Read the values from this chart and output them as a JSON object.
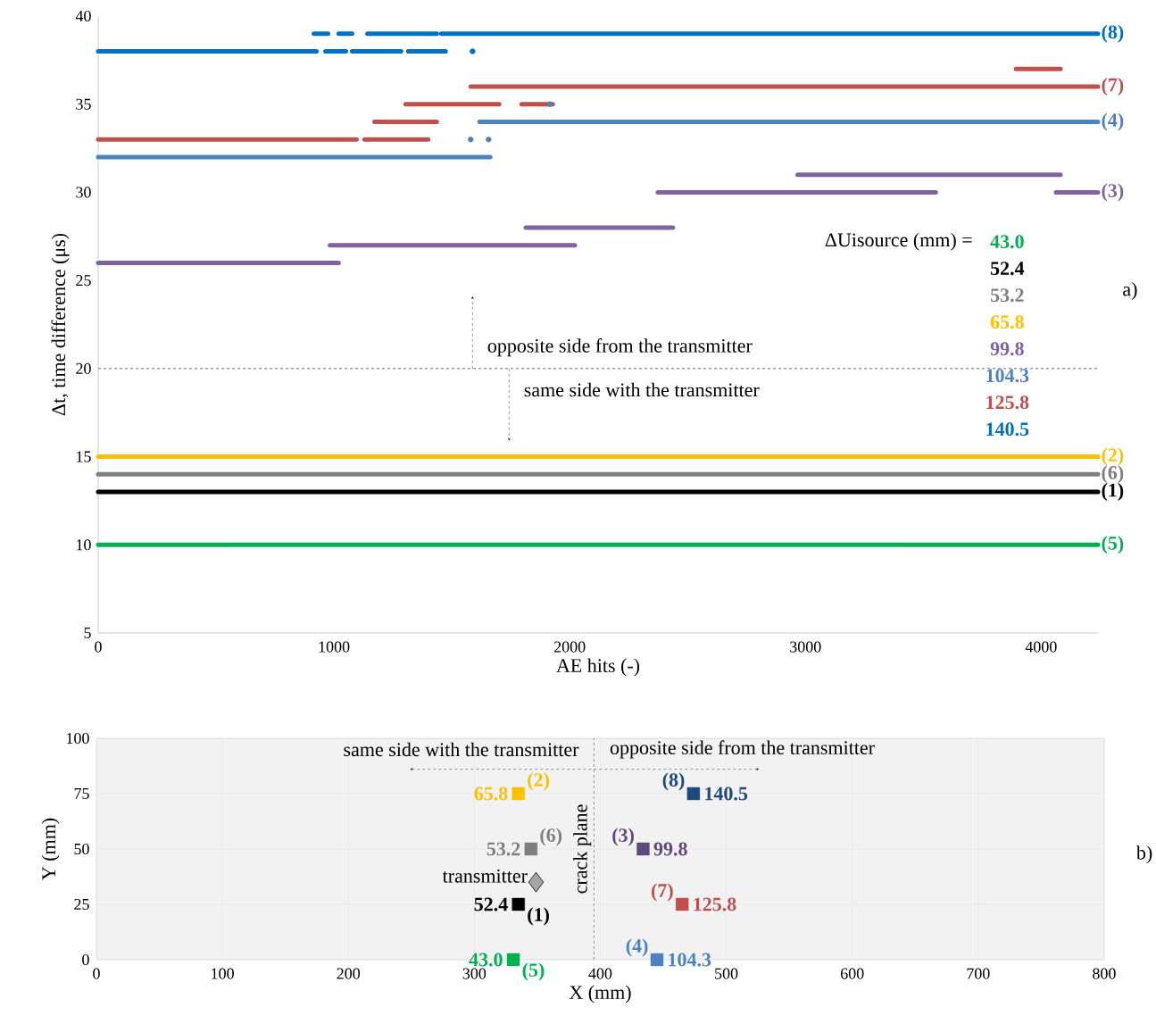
{
  "chart_data": [
    {
      "type": "line",
      "xlabel": "AE hits (-)",
      "ylabel": "Δt, time difference (μs)",
      "xlim": [
        0,
        4241
      ],
      "ylim": [
        5,
        40
      ],
      "xticks": [
        0,
        1000,
        2000,
        3000,
        4000
      ],
      "yticks": [
        5,
        10,
        15,
        20,
        25,
        30,
        35,
        40
      ],
      "ref_lines": [
        {
          "axis": "y",
          "value": 20,
          "line_style": "dashed"
        }
      ],
      "annotations": [
        "opposite side from the transmitter",
        "same side with the transmitter",
        "ΔUisource (mm) =",
        "43.0",
        "52.4",
        "53.2",
        "65.8",
        "99.8",
        "104.3",
        "125.8",
        "140.5",
        "a)"
      ],
      "series": [
        {
          "name": "(5)",
          "color": "#00b050",
          "x": [
            0,
            4241
          ],
          "values": [
            10,
            10
          ]
        },
        {
          "name": "(1)",
          "color": "#000000",
          "x": [
            0,
            4241
          ],
          "values": [
            13,
            13
          ]
        },
        {
          "name": "(6)",
          "color": "#7f7f7f",
          "x": [
            0,
            4241
          ],
          "values": [
            14,
            14
          ]
        },
        {
          "name": "(2)",
          "color": "#ffc000",
          "x": [
            0,
            4241
          ],
          "values": [
            15,
            15
          ]
        },
        {
          "name": "(3)",
          "color": "#8064a2",
          "x": [
            0,
            1020,
            null,
            983,
            2022,
            null,
            1814,
            2438,
            null,
            2967,
            4082,
            null,
            2374,
            3553,
            null,
            4063,
            4241
          ],
          "values": [
            26,
            26,
            null,
            27,
            27,
            null,
            28,
            28,
            null,
            31,
            31,
            null,
            30,
            30,
            null,
            30,
            30
          ]
        },
        {
          "name": "(4)",
          "color": "#4f81bd",
          "x": [
            0,
            1663,
            null,
            1618,
            4241
          ],
          "values": [
            32,
            32,
            null,
            34,
            34
          ]
        },
        {
          "type": "scatter",
          "marker": "circle",
          "color": "#4f81bd",
          "x": [
            1580,
            1656,
            1916
          ],
          "values": [
            33,
            33,
            35
          ]
        },
        {
          "name": "(7)",
          "color": "#c0504d",
          "x": [
            0,
            1096,
            null,
            1130,
            1400,
            null,
            1172,
            1436,
            null,
            1304,
            1701,
            null,
            1796,
            1928,
            null,
            3893,
            4082,
            null,
            1580,
            4241
          ],
          "values": [
            33,
            33,
            null,
            33,
            33,
            null,
            34,
            34,
            null,
            35,
            35,
            null,
            35,
            35,
            null,
            37,
            37,
            null,
            36,
            36
          ]
        },
        {
          "name": "(8)",
          "color": "#0070c0",
          "x": [
            0,
            926,
            null,
            964,
            1051,
            null,
            1077,
            1285,
            null,
            1315,
            1474,
            null,
            915,
            975,
            null,
            1020,
            1077,
            null,
            1142,
            1436,
            null,
            1455,
            4241
          ],
          "values": [
            38,
            38,
            null,
            38,
            38,
            null,
            38,
            38,
            null,
            38,
            38,
            null,
            39,
            39,
            null,
            39,
            39,
            null,
            39,
            39,
            null,
            39,
            39
          ]
        },
        {
          "type": "scatter",
          "marker": "circle",
          "color": "#0070c0",
          "x": [
            1588
          ],
          "values": [
            38
          ]
        }
      ]
    },
    {
      "type": "scatter",
      "xlabel": "X (mm)",
      "ylabel": "Y (mm)",
      "xlim": [
        0,
        800
      ],
      "ylim": [
        0,
        100
      ],
      "xticks": [
        0,
        100,
        200,
        300,
        400,
        500,
        600,
        700,
        800
      ],
      "yticks": [
        0,
        25,
        50,
        75,
        100
      ],
      "grid": true,
      "marker": "square",
      "ref_lines": [
        {
          "axis": "x",
          "value": 395,
          "label": "crack plane",
          "line_style": "dashed"
        }
      ],
      "annotations": [
        "same side with the transmitter",
        "opposite side from the transmitter",
        "b)",
        {
          "text": "65.8",
          "x": 335,
          "y": 75
        },
        {
          "text": "53.2",
          "x": 345,
          "y": 50
        },
        {
          "text": "52.4",
          "x": 335,
          "y": 25
        },
        {
          "text": "43.0",
          "x": 331,
          "y": 0
        },
        {
          "text": "140.5",
          "x": 474,
          "y": 75
        },
        {
          "text": "99.8",
          "x": 434,
          "y": 50
        },
        {
          "text": "125.8",
          "x": 465,
          "y": 25
        },
        {
          "text": "104.3",
          "x": 445,
          "y": 0
        }
      ],
      "series": [
        {
          "name": "(2)",
          "color": "#ffc000",
          "x": [
            335
          ],
          "values": [
            75
          ]
        },
        {
          "name": "(6)",
          "color": "#7f7f7f",
          "x": [
            345
          ],
          "values": [
            50
          ]
        },
        {
          "name": "(1)",
          "color": "#000000",
          "x": [
            335
          ],
          "values": [
            25
          ]
        },
        {
          "name": "(5)",
          "color": "#00b050",
          "x": [
            331
          ],
          "values": [
            0
          ]
        },
        {
          "name": "(8)",
          "color": "#1f497d",
          "x": [
            474
          ],
          "values": [
            75
          ]
        },
        {
          "name": "(3)",
          "color": "#604a7b",
          "x": [
            434
          ],
          "values": [
            50
          ]
        },
        {
          "name": "(7)",
          "color": "#c0504d",
          "x": [
            465
          ],
          "values": [
            25
          ]
        },
        {
          "name": "(4)",
          "color": "#4f81bd",
          "x": [
            445
          ],
          "values": [
            0
          ]
        },
        {
          "name": "transmitter",
          "color": "#a6a6a6",
          "marker": "diamond",
          "x": [
            349
          ],
          "values": [
            35
          ]
        }
      ]
    }
  ]
}
